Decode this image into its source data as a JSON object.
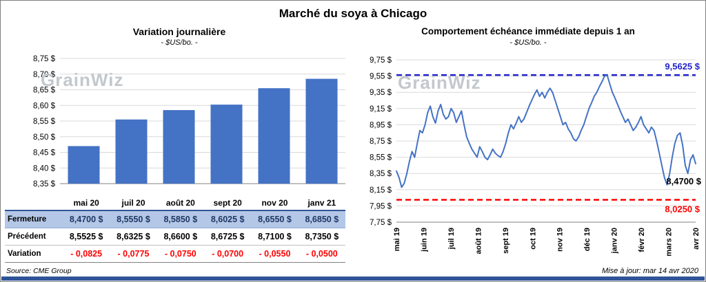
{
  "page": {
    "title": "Marché du soya à Chicago",
    "source": "Source: CME Group",
    "updated": "Mise à jour: mar 14 avr 2020",
    "watermark": "GrainWiz"
  },
  "colors": {
    "bar": "#4472C4",
    "line": "#4472C4",
    "high_line": "#2222CC",
    "low_line": "#FF0000",
    "grid": "#D9D9D9",
    "axis": "#808080",
    "fermeture_bg": "#B4C7E7",
    "fermeture_text": "#1F3864",
    "variation_text": "#FF0000",
    "bottom_bar": "#2F5597"
  },
  "chart_data": [
    {
      "type": "bar",
      "title": "Variation journalière",
      "subtitle": "- $US/bo. -",
      "categories": [
        "mai 20",
        "juil 20",
        "août 20",
        "sept 20",
        "nov 20",
        "janv 21"
      ],
      "values": [
        8.47,
        8.555,
        8.585,
        8.6025,
        8.655,
        8.685
      ],
      "ylim": [
        8.35,
        8.75
      ],
      "ytick_labels": [
        "8,35 $",
        "8,40 $",
        "8,45 $",
        "8,50 $",
        "8,55 $",
        "8,60 $",
        "8,65 $",
        "8,70 $",
        "8,75 $"
      ],
      "grid": true,
      "table": {
        "rows": [
          {
            "label": "Fermeture",
            "values": [
              "8,4700 $",
              "8,5550 $",
              "8,5850 $",
              "8,6025 $",
              "8,6550 $",
              "8,6850 $"
            ]
          },
          {
            "label": "Précédent",
            "values": [
              "8,5525 $",
              "8,6325 $",
              "8,6600 $",
              "8,6725 $",
              "8,7100 $",
              "8,7350 $"
            ]
          },
          {
            "label": "Variation",
            "values": [
              "- 0,0825",
              "- 0,0775",
              "- 0,0750",
              "- 0,0700",
              "- 0,0550",
              "- 0,0500"
            ]
          }
        ]
      }
    },
    {
      "type": "line",
      "title": "Comportement échéance immédiate depuis 1 an",
      "subtitle": "- $US/bo. -",
      "x_labels": [
        "mai 19",
        "juin 19",
        "juil 19",
        "août 19",
        "sept 19",
        "oct 19",
        "nov 19",
        "déc 19",
        "janv 20",
        "févr 20",
        "mars 20",
        "avr 20"
      ],
      "ylim": [
        7.75,
        9.75
      ],
      "ytick_labels": [
        "7,75 $",
        "7,95 $",
        "8,15 $",
        "8,35 $",
        "8,55 $",
        "8,75 $",
        "8,95 $",
        "9,15 $",
        "9,35 $",
        "9,55 $",
        "9,75 $"
      ],
      "grid": true,
      "values": [
        8.38,
        8.3,
        8.18,
        8.23,
        8.35,
        8.5,
        8.62,
        8.55,
        8.72,
        8.88,
        8.85,
        8.95,
        9.1,
        9.18,
        9.05,
        8.97,
        9.12,
        9.2,
        9.08,
        9.02,
        9.05,
        9.15,
        9.1,
        8.98,
        9.05,
        9.12,
        8.95,
        8.8,
        8.72,
        8.65,
        8.6,
        8.55,
        8.68,
        8.62,
        8.55,
        8.52,
        8.58,
        8.65,
        8.6,
        8.57,
        8.55,
        8.62,
        8.72,
        8.85,
        8.95,
        8.9,
        8.97,
        9.05,
        8.98,
        9.02,
        9.1,
        9.18,
        9.25,
        9.32,
        9.38,
        9.3,
        9.35,
        9.28,
        9.35,
        9.4,
        9.35,
        9.25,
        9.15,
        9.05,
        8.95,
        8.98,
        8.9,
        8.85,
        8.78,
        8.75,
        8.8,
        8.88,
        8.95,
        9.05,
        9.15,
        9.22,
        9.3,
        9.35,
        9.42,
        9.48,
        9.55,
        9.56,
        9.45,
        9.35,
        9.28,
        9.2,
        9.12,
        9.05,
        8.98,
        9.02,
        8.95,
        8.88,
        8.92,
        8.98,
        9.05,
        8.95,
        8.9,
        8.85,
        8.92,
        8.88,
        8.75,
        8.6,
        8.45,
        8.3,
        8.21,
        8.35,
        8.55,
        8.72,
        8.82,
        8.85,
        8.7,
        8.45,
        8.35,
        8.52,
        8.58,
        8.47
      ],
      "annotations": {
        "high": {
          "value": 9.5625,
          "label": "9,5625 $"
        },
        "low": {
          "value": 8.025,
          "label": "8,0250 $"
        },
        "last": {
          "value": 8.47,
          "label": "8,4700 $"
        }
      }
    }
  ]
}
